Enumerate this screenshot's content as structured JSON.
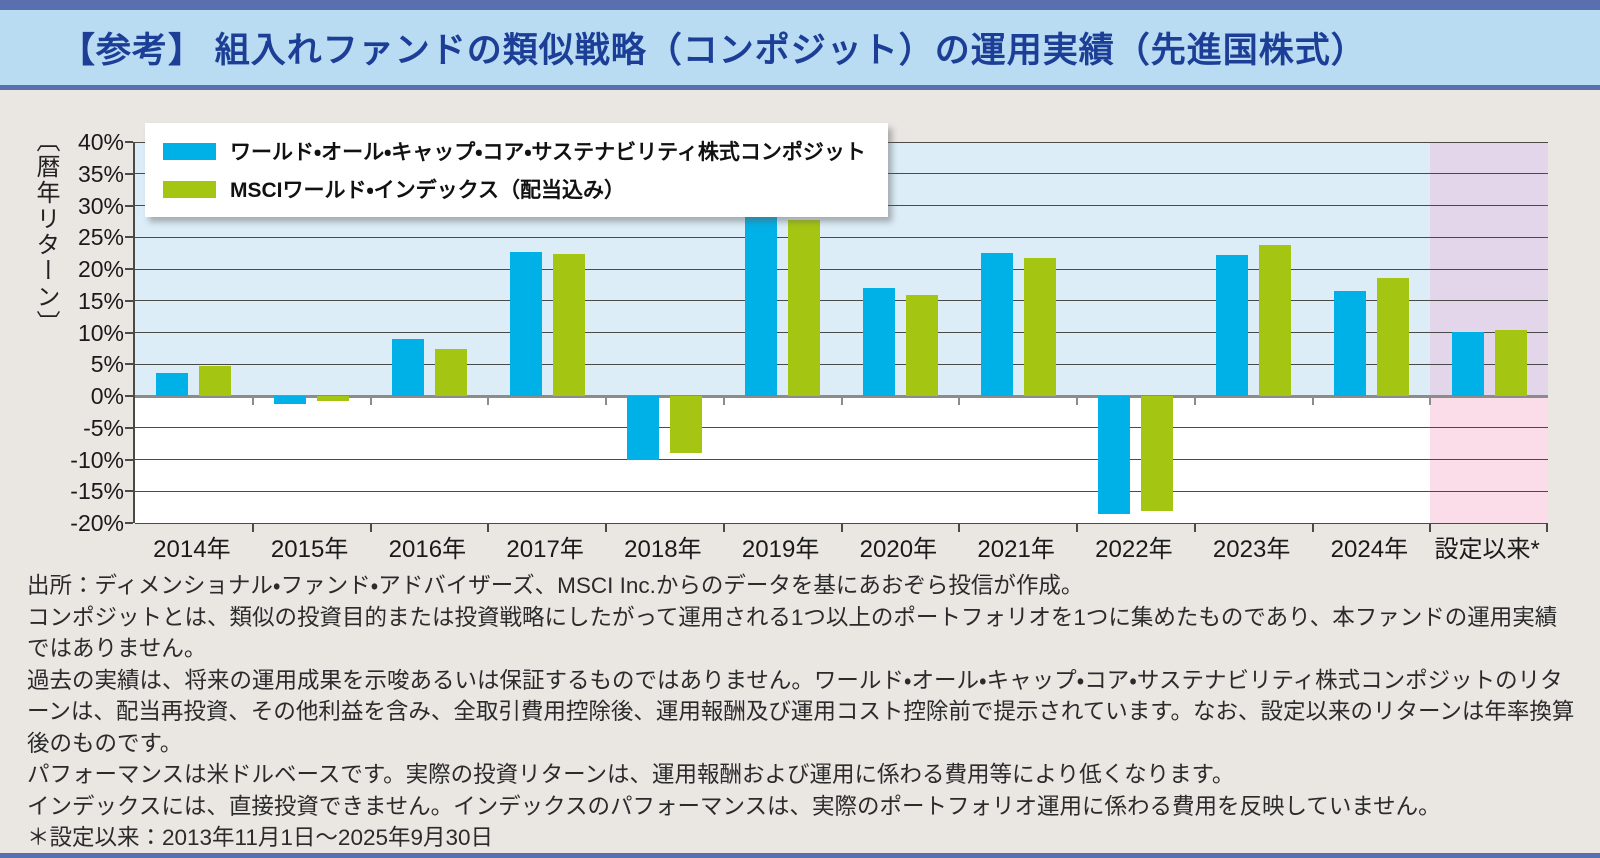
{
  "banner": {
    "title": "【参考】 組入れファンドの類似戦略（コンポジット）の運用実績（先進国株式）"
  },
  "chart_data": {
    "type": "bar",
    "title": "",
    "ylabel": "〔暦年リターン〕",
    "ylim": [
      -20,
      40
    ],
    "grid": true,
    "legend_position": "top-left",
    "y_ticks": [
      {
        "value": 40,
        "label": "40%"
      },
      {
        "value": 35,
        "label": "35%"
      },
      {
        "value": 30,
        "label": "30%"
      },
      {
        "value": 25,
        "label": "25%"
      },
      {
        "value": 20,
        "label": "20%"
      },
      {
        "value": 15,
        "label": "15%"
      },
      {
        "value": 10,
        "label": "10%"
      },
      {
        "value": 5,
        "label": "5%"
      },
      {
        "value": 0,
        "label": "0%"
      },
      {
        "value": -5,
        "label": "-5%"
      },
      {
        "value": -10,
        "label": "-10%"
      },
      {
        "value": -15,
        "label": "-15%"
      },
      {
        "value": -20,
        "label": "-20%"
      }
    ],
    "categories": [
      "2014年",
      "2015年",
      "2016年",
      "2017年",
      "2018年",
      "2019年",
      "2020年",
      "2021年",
      "2022年",
      "2023年",
      "2024年",
      "設定以来*"
    ],
    "series": [
      {
        "name": "ワールド・オール・キャップ・コア・サステナビリティ株式コンポジット",
        "color": "#00b1e8",
        "values": [
          3.7,
          -1.3,
          8.9,
          22.6,
          -10.0,
          29.4,
          17.0,
          22.5,
          -18.6,
          22.2,
          16.6,
          10.1
        ]
      },
      {
        "name": "MSCIワールド・インデックス（配当込み）",
        "color": "#a5c513",
        "values": [
          4.8,
          -0.8,
          7.4,
          22.4,
          -8.9,
          27.7,
          15.9,
          21.8,
          -18.1,
          23.8,
          18.6,
          10.4
        ]
      }
    ],
    "highlight_last_category": true,
    "highlight_colors": {
      "positive_bg": "#e4d6ea",
      "negative_bg": "#fbdce9"
    },
    "plot_colors": {
      "positive_bg": "#ddedf8",
      "negative_bg": "#ffffff",
      "gridline": "#4a4a48",
      "zeroline": "#8c8c8c"
    }
  },
  "footer": {
    "notes": [
      "出所：ディメンショナル・ファンド・アドバイザーズ、MSCI Inc.からのデータを基にあおぞら投信が作成。",
      "コンポジットとは、類似の投資目的または投資戦略にしたがって運用される1つ以上のポートフォリオを1つに集めたものであり、本ファンドの運用実績ではありません。",
      "過去の実績は、将来の運用成果を示唆あるいは保証するものではありません。ワールド・オール・キャップ・コア・サステナビリティ株式コンポジットのリターンは、配当再投資、その他利益を含み、全取引費用控除後、運用報酬及び運用コスト控除前で提示されています。なお、設定以来のリターンは年率換算後のものです。",
      "パフォーマンスは米ドルベースです。実際の投資リターンは、運用報酬および運用に係わる費用等により低くなります。",
      "インデックスには、直接投資できません。インデックスのパフォーマンスは、実際のポートフォリオ運用に係わる費用を反映していません。",
      "＊設定以来：2013年11月1日～2025年9月30日"
    ]
  },
  "colors": {
    "banner_bg": "#b9dcf2",
    "banner_rule": "#5a6fae",
    "title_text": "#1c3e96",
    "page_bg": "#eae7e3",
    "series1": "#00b1e8",
    "series2": "#a5c513"
  }
}
